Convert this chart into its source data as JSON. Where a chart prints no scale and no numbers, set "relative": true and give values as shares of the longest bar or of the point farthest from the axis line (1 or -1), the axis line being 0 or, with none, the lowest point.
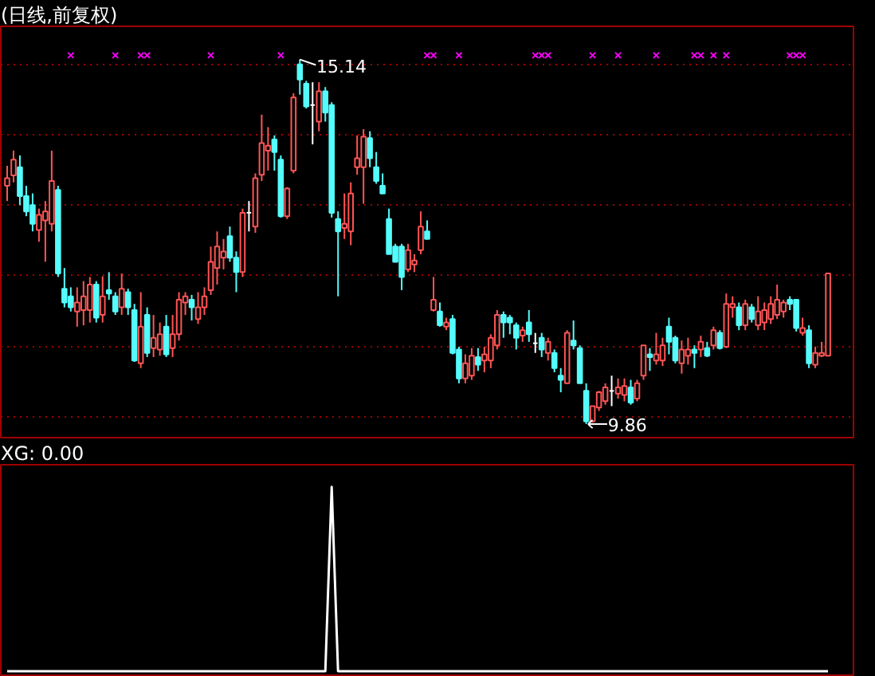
{
  "chart_data": [
    {
      "type": "candlestick",
      "title": "(日线,前复权)",
      "relative": false,
      "categories": [
        null,
        null,
        null,
        null,
        null,
        null,
        null,
        null,
        null,
        null,
        null,
        null,
        null,
        null,
        null,
        null,
        null,
        null,
        null,
        null,
        null,
        null,
        null,
        null,
        null,
        null,
        null,
        null,
        null,
        null,
        null,
        null,
        null,
        null,
        null,
        null,
        null,
        null,
        null,
        null,
        null,
        null,
        null,
        null,
        null,
        null,
        null,
        null,
        null,
        null,
        null,
        null,
        null,
        null,
        null,
        null,
        null,
        null,
        null,
        null,
        null,
        null,
        null,
        null,
        null,
        null,
        null,
        null,
        null,
        null,
        null,
        null,
        null,
        null,
        null,
        null,
        null,
        null,
        null,
        null,
        null,
        null,
        null,
        null,
        null,
        null,
        null,
        null,
        null,
        null,
        null,
        null,
        null,
        null,
        null,
        null,
        null,
        null,
        null,
        null,
        null,
        null,
        null,
        null,
        null,
        null,
        null,
        null,
        null,
        null,
        null,
        null,
        null,
        null,
        null,
        null,
        null,
        null,
        null,
        null,
        null,
        null,
        null,
        null,
        null,
        null,
        null,
        null,
        null,
        null
      ],
      "ohlc": [
        [
          13.31,
          13.6,
          13.09,
          13.42
        ],
        [
          13.46,
          13.82,
          13.36,
          13.69
        ],
        [
          13.58,
          13.75,
          13.03,
          13.16
        ],
        [
          13.16,
          13.31,
          12.87,
          12.94
        ],
        [
          13.03,
          13.2,
          12.65,
          12.76
        ],
        [
          12.67,
          12.98,
          12.5,
          12.89
        ],
        [
          12.81,
          13.09,
          12.21,
          12.94
        ],
        [
          12.76,
          13.82,
          12.65,
          13.38
        ],
        [
          13.25,
          13.31,
          11.99,
          12.04
        ],
        [
          11.82,
          12.12,
          11.55,
          11.62
        ],
        [
          11.71,
          11.84,
          11.49,
          11.55
        ],
        [
          11.49,
          11.84,
          11.27,
          11.62
        ],
        [
          11.51,
          11.93,
          11.29,
          11.71
        ],
        [
          11.51,
          11.99,
          11.33,
          11.88
        ],
        [
          11.88,
          11.93,
          11.33,
          11.4
        ],
        [
          11.44,
          12.0,
          11.33,
          11.71
        ],
        [
          11.8,
          12.06,
          11.66,
          11.75
        ],
        [
          11.71,
          11.77,
          11.44,
          11.49
        ],
        [
          11.55,
          12.04,
          11.44,
          11.82
        ],
        [
          11.77,
          11.82,
          11.44,
          11.55
        ],
        [
          11.51,
          11.6,
          10.76,
          10.78
        ],
        [
          10.74,
          11.77,
          10.67,
          11.27
        ],
        [
          11.44,
          11.55,
          10.83,
          10.89
        ],
        [
          10.96,
          11.44,
          10.83,
          11.11
        ],
        [
          10.94,
          11.33,
          10.85,
          11.16
        ],
        [
          11.27,
          11.44,
          10.83,
          10.87
        ],
        [
          10.96,
          11.44,
          10.83,
          11.16
        ],
        [
          11.16,
          11.77,
          11.07,
          11.66
        ],
        [
          11.62,
          11.77,
          11.44,
          11.71
        ],
        [
          11.66,
          11.73,
          11.36,
          11.55
        ],
        [
          11.38,
          11.77,
          11.31,
          11.55
        ],
        [
          11.55,
          11.84,
          11.44,
          11.71
        ],
        [
          11.8,
          12.43,
          11.73,
          12.21
        ],
        [
          12.12,
          12.65,
          11.88,
          12.43
        ],
        [
          12.27,
          12.54,
          12.1,
          12.36
        ],
        [
          12.58,
          12.72,
          12.21,
          12.27
        ],
        [
          12.27,
          12.36,
          11.77,
          12.06
        ],
        [
          12.06,
          12.98,
          11.99,
          12.92
        ],
        [
          12.92,
          13.09,
          12.65,
          12.92
        ],
        [
          12.72,
          13.49,
          12.63,
          13.42
        ],
        [
          13.47,
          14.34,
          13.38,
          13.93
        ],
        [
          13.82,
          14.16,
          13.53,
          13.89
        ],
        [
          13.98,
          14.04,
          13.53,
          13.8
        ],
        [
          13.69,
          13.75,
          12.85,
          12.87
        ],
        [
          12.87,
          13.29,
          12.83,
          13.27
        ],
        [
          13.53,
          14.65,
          13.49,
          14.59
        ],
        [
          15.07,
          15.14,
          14.63,
          14.85
        ],
        [
          14.79,
          14.83,
          14.43,
          14.46
        ],
        [
          14.48,
          14.81,
          13.91,
          14.48
        ],
        [
          14.24,
          14.81,
          14.1,
          14.68
        ],
        [
          14.68,
          14.74,
          14.24,
          14.37
        ],
        [
          14.48,
          14.52,
          12.85,
          12.92
        ],
        [
          12.83,
          12.94,
          11.71,
          12.65
        ],
        [
          12.7,
          13.2,
          12.54,
          12.76
        ],
        [
          12.65,
          13.36,
          12.45,
          13.2
        ],
        [
          13.58,
          14.04,
          13.47,
          13.71
        ],
        [
          13.58,
          14.13,
          13.05,
          14.02
        ],
        [
          14.0,
          14.1,
          13.58,
          13.71
        ],
        [
          13.58,
          13.8,
          13.34,
          13.38
        ],
        [
          13.31,
          13.49,
          13.2,
          13.2
        ],
        [
          12.83,
          12.98,
          12.32,
          12.32
        ],
        [
          12.43,
          12.47,
          12.21,
          12.21
        ],
        [
          12.43,
          12.47,
          11.8,
          11.99
        ],
        [
          12.1,
          12.47,
          12.06,
          12.38
        ],
        [
          12.17,
          12.32,
          12.06,
          12.23
        ],
        [
          12.38,
          12.94,
          12.32,
          12.72
        ],
        [
          12.65,
          12.81,
          12.54,
          12.54
        ],
        [
          11.51,
          11.99,
          11.49,
          11.66
        ],
        [
          11.49,
          11.62,
          11.27,
          11.29
        ],
        [
          11.27,
          11.4,
          11.22,
          11.33
        ],
        [
          11.38,
          11.44,
          10.87,
          10.89
        ],
        [
          10.94,
          10.98,
          10.45,
          10.52
        ],
        [
          10.52,
          10.87,
          10.45,
          10.74
        ],
        [
          10.56,
          10.96,
          10.5,
          10.85
        ],
        [
          10.83,
          10.96,
          10.63,
          10.72
        ],
        [
          10.78,
          10.98,
          10.61,
          10.87
        ],
        [
          10.78,
          11.16,
          10.67,
          11.11
        ],
        [
          11.0,
          11.51,
          10.94,
          11.44
        ],
        [
          11.44,
          11.49,
          11.11,
          11.33
        ],
        [
          11.4,
          11.44,
          11.16,
          11.33
        ],
        [
          11.29,
          11.33,
          10.94,
          11.11
        ],
        [
          11.14,
          11.27,
          11.05,
          11.22
        ],
        [
          11.33,
          11.51,
          11.05,
          11.16
        ],
        [
          11.03,
          11.18,
          10.89,
          11.03
        ],
        [
          11.11,
          11.18,
          10.83,
          10.94
        ],
        [
          10.89,
          11.11,
          10.78,
          11.05
        ],
        [
          10.89,
          10.94,
          10.61,
          10.67
        ],
        [
          10.56,
          10.67,
          10.32,
          10.5
        ],
        [
          10.45,
          11.22,
          10.45,
          11.18
        ],
        [
          11.07,
          11.36,
          10.94,
          11.0
        ],
        [
          10.96,
          11.0,
          10.45,
          10.45
        ],
        [
          10.34,
          10.45,
          9.86,
          9.9
        ],
        [
          9.9,
          10.12,
          9.88,
          10.12
        ],
        [
          10.1,
          10.34,
          10.05,
          10.32
        ],
        [
          10.19,
          10.45,
          10.14,
          10.39
        ],
        [
          10.34,
          10.56,
          10.12,
          10.34
        ],
        [
          10.3,
          10.52,
          10.23,
          10.39
        ],
        [
          10.28,
          10.52,
          10.19,
          10.41
        ],
        [
          10.39,
          10.5,
          10.14,
          10.17
        ],
        [
          10.23,
          10.5,
          10.19,
          10.45
        ],
        [
          10.56,
          11.0,
          10.5,
          11.0
        ],
        [
          10.87,
          10.96,
          10.63,
          10.83
        ],
        [
          10.78,
          11.18,
          10.72,
          10.87
        ],
        [
          10.78,
          11.11,
          10.7,
          11.0
        ],
        [
          11.27,
          11.4,
          10.87,
          11.05
        ],
        [
          11.11,
          11.14,
          10.74,
          10.78
        ],
        [
          10.74,
          11.07,
          10.59,
          10.94
        ],
        [
          10.85,
          11.11,
          10.72,
          10.94
        ],
        [
          10.94,
          11.0,
          10.67,
          10.89
        ],
        [
          10.94,
          11.14,
          10.83,
          11.05
        ],
        [
          10.96,
          11.05,
          10.83,
          10.85
        ],
        [
          11.0,
          11.27,
          10.94,
          11.22
        ],
        [
          11.18,
          11.22,
          10.94,
          10.96
        ],
        [
          10.98,
          11.75,
          10.96,
          11.6
        ],
        [
          11.55,
          11.71,
          11.4,
          11.6
        ],
        [
          11.55,
          11.62,
          11.22,
          11.29
        ],
        [
          11.29,
          11.66,
          11.22,
          11.6
        ],
        [
          11.55,
          11.6,
          11.33,
          11.38
        ],
        [
          11.29,
          11.71,
          11.22,
          11.49
        ],
        [
          11.33,
          11.62,
          11.22,
          11.51
        ],
        [
          11.38,
          11.71,
          11.31,
          11.6
        ],
        [
          11.44,
          11.88,
          11.38,
          11.66
        ],
        [
          11.49,
          11.66,
          11.4,
          11.62
        ],
        [
          11.66,
          11.71,
          11.51,
          11.6
        ],
        [
          11.66,
          11.66,
          11.2,
          11.25
        ],
        [
          11.18,
          11.4,
          11.14,
          11.25
        ],
        [
          11.22,
          11.29,
          10.67,
          10.74
        ],
        [
          10.72,
          10.98,
          10.67,
          10.89
        ],
        [
          10.85,
          11.05,
          10.83,
          10.89
        ],
        [
          10.85,
          12.04,
          10.85,
          12.04
        ]
      ],
      "colors": [
        "#ff5454",
        "#ff5454",
        "#54fcfc",
        "#54fcfc",
        "#54fcfc",
        "#ff5454",
        "#ff5454",
        "#ff5454",
        "#54fcfc",
        "#54fcfc",
        "#54fcfc",
        "#ff5454",
        "#ff5454",
        "#ff5454",
        "#54fcfc",
        "#ff5454",
        "#54fcfc",
        "#54fcfc",
        "#ff5454",
        "#54fcfc",
        "#54fcfc",
        "#ff5454",
        "#54fcfc",
        "#ff5454",
        "#ff5454",
        "#54fcfc",
        "#ff5454",
        "#ff5454",
        "#ff5454",
        "#54fcfc",
        "#ff5454",
        "#ff5454",
        "#ff5454",
        "#ff5454",
        "#ff5454",
        "#54fcfc",
        "#54fcfc",
        "#ff5454",
        "#ffffff",
        "#ff5454",
        "#ff5454",
        "#ff5454",
        "#54fcfc",
        "#54fcfc",
        "#ff5454",
        "#ff5454",
        "#54fcfc",
        "#54fcfc",
        "#ffffff",
        "#ff5454",
        "#54fcfc",
        "#54fcfc",
        "#54fcfc",
        "#ff5454",
        "#ff5454",
        "#ff5454",
        "#ff5454",
        "#54fcfc",
        "#54fcfc",
        "#54fcfc",
        "#54fcfc",
        "#54fcfc",
        "#54fcfc",
        "#ff5454",
        "#ff5454",
        "#ff5454",
        "#54fcfc",
        "#ff5454",
        "#54fcfc",
        "#ff5454",
        "#54fcfc",
        "#54fcfc",
        "#ff5454",
        "#ff5454",
        "#54fcfc",
        "#ff5454",
        "#ff5454",
        "#ff5454",
        "#54fcfc",
        "#54fcfc",
        "#54fcfc",
        "#ff5454",
        "#54fcfc",
        "#ffffff",
        "#54fcfc",
        "#ff5454",
        "#54fcfc",
        "#54fcfc",
        "#ff5454",
        "#54fcfc",
        "#54fcfc",
        "#54fcfc",
        "#ff5454",
        "#ff5454",
        "#ff5454",
        "#ffffff",
        "#ff5454",
        "#ff5454",
        "#54fcfc",
        "#ff5454",
        "#ff5454",
        "#54fcfc",
        "#ff5454",
        "#ff5454",
        "#54fcfc",
        "#54fcfc",
        "#ff5454",
        "#ff5454",
        "#54fcfc",
        "#ff5454",
        "#54fcfc",
        "#ff5454",
        "#54fcfc",
        "#ff5454",
        "#ff5454",
        "#54fcfc",
        "#ff5454",
        "#54fcfc",
        "#ff5454",
        "#ff5454",
        "#ff5454",
        "#ff5454",
        "#ff5454",
        "#54fcfc",
        "#54fcfc",
        "#ff5454",
        "#54fcfc",
        "#ff5454",
        "#ff5454",
        "#ff5454"
      ],
      "series": [
        {
          "type": "scatter",
          "marker": "cross",
          "color": "#ff00ff",
          "values": [
            null,
            null,
            null,
            null,
            null,
            null,
            null,
            null,
            null,
            null,
            15.2,
            null,
            null,
            null,
            null,
            null,
            null,
            15.2,
            null,
            null,
            null,
            15.2,
            15.2,
            null,
            null,
            null,
            null,
            null,
            null,
            null,
            null,
            null,
            15.2,
            null,
            null,
            null,
            null,
            null,
            null,
            null,
            null,
            null,
            null,
            15.2,
            null,
            null,
            null,
            null,
            null,
            null,
            null,
            null,
            null,
            null,
            null,
            null,
            null,
            null,
            null,
            null,
            null,
            null,
            null,
            null,
            null,
            null,
            15.2,
            15.2,
            null,
            null,
            null,
            15.2,
            null,
            null,
            null,
            null,
            null,
            null,
            null,
            null,
            null,
            null,
            null,
            15.2,
            15.2,
            15.2,
            null,
            null,
            null,
            null,
            null,
            null,
            15.2,
            null,
            null,
            null,
            15.2,
            null,
            null,
            null,
            null,
            null,
            15.2,
            null,
            null,
            null,
            null,
            null,
            15.2,
            15.2,
            null,
            15.2,
            null,
            15.2,
            null,
            null,
            null,
            null,
            null,
            null,
            null,
            null,
            null,
            15.2,
            15.2,
            15.2,
            null,
            null,
            null,
            null
          ]
        }
      ],
      "annotations": [
        "15.14",
        "9.86"
      ],
      "ylim": [
        9.64,
        15.62
      ],
      "yticks": [
        {
          "value": 9.97,
          "label": null
        },
        {
          "value": 10.99,
          "label": null
        },
        {
          "value": 12.02,
          "label": null
        },
        {
          "value": 13.03,
          "label": null
        },
        {
          "value": 14.04,
          "label": null
        },
        {
          "value": 15.07,
          "label": null
        }
      ],
      "grid": "y",
      "tick_labels": false
    },
    {
      "type": "line",
      "title": "XG: 0.00",
      "relative": true,
      "color": "#ffffff",
      "categories": [
        null,
        null,
        null,
        null,
        null,
        null,
        null,
        null,
        null,
        null,
        null,
        null,
        null,
        null,
        null,
        null,
        null,
        null,
        null,
        null,
        null,
        null,
        null,
        null,
        null,
        null,
        null,
        null,
        null,
        null,
        null,
        null,
        null,
        null,
        null,
        null,
        null,
        null,
        null,
        null,
        null,
        null,
        null,
        null,
        null,
        null,
        null,
        null,
        null,
        null,
        null,
        null,
        null,
        null,
        null,
        null,
        null,
        null,
        null,
        null,
        null,
        null,
        null,
        null,
        null,
        null,
        null,
        null,
        null,
        null,
        null,
        null,
        null,
        null,
        null,
        null,
        null,
        null,
        null,
        null,
        null,
        null,
        null,
        null,
        null,
        null,
        null,
        null,
        null,
        null,
        null,
        null,
        null,
        null,
        null,
        null,
        null,
        null,
        null,
        null,
        null,
        null,
        null,
        null,
        null,
        null,
        null,
        null,
        null,
        null,
        null,
        null,
        null,
        null,
        null,
        null,
        null,
        null,
        null,
        null,
        null,
        null,
        null,
        null,
        null,
        null,
        null,
        null,
        null,
        null
      ],
      "values": [
        0,
        0,
        0,
        0,
        0,
        0,
        0,
        0,
        0,
        0,
        0,
        0,
        0,
        0,
        0,
        0,
        0,
        0,
        0,
        0,
        0,
        0,
        0,
        0,
        0,
        0,
        0,
        0,
        0,
        0,
        0,
        0,
        0,
        0,
        0,
        0,
        0,
        0,
        0,
        0,
        0,
        0,
        0,
        0,
        0,
        0,
        0,
        0,
        0,
        0,
        0,
        1,
        0,
        0,
        0,
        0,
        0,
        0,
        0,
        0,
        0,
        0,
        0,
        0,
        0,
        0,
        0,
        0,
        0,
        0,
        0,
        0,
        0,
        0,
        0,
        0,
        0,
        0,
        0,
        0,
        0,
        0,
        0,
        0,
        0,
        0,
        0,
        0,
        0,
        0,
        0,
        0,
        0,
        0,
        0,
        0,
        0,
        0,
        0,
        0,
        0,
        0,
        0,
        0,
        0,
        0,
        0,
        0,
        0,
        0,
        0,
        0,
        0,
        0,
        0,
        0,
        0,
        0,
        0,
        0,
        0,
        0,
        0,
        0,
        0,
        0,
        0,
        0,
        0,
        0
      ],
      "grid": false,
      "tick_labels": false
    }
  ]
}
